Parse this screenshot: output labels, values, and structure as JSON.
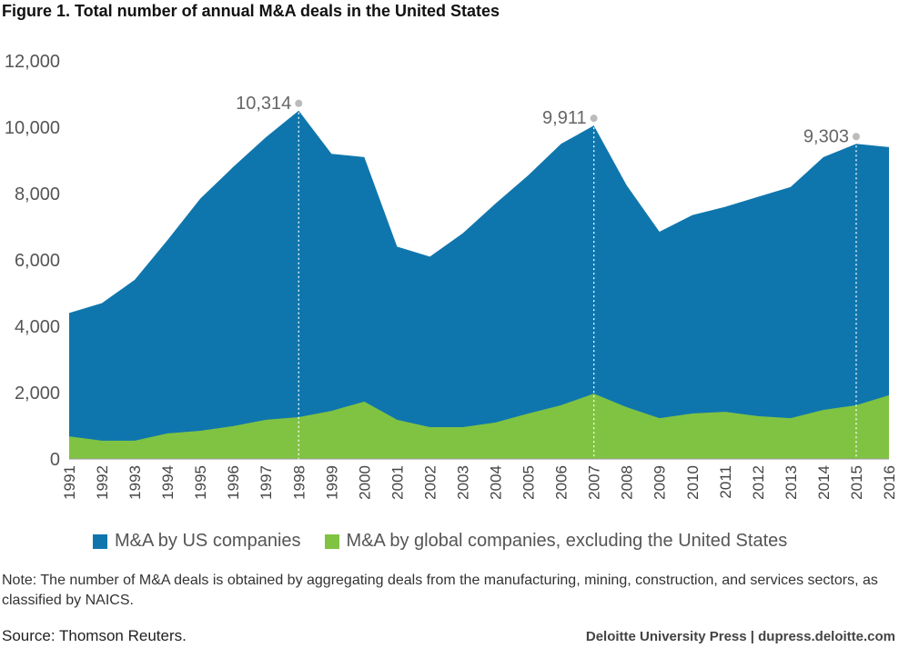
{
  "chart_data": {
    "type": "area",
    "title": "Figure 1. Total number of annual M&A deals in the United States",
    "xlabel": "",
    "ylabel": "",
    "ylim": [
      0,
      12000
    ],
    "yticks": [
      "0",
      "2,000",
      "4,000",
      "6,000",
      "8,000",
      "10,000",
      "12,000"
    ],
    "ytick_values": [
      0,
      2000,
      4000,
      6000,
      8000,
      10000,
      12000
    ],
    "grid": false,
    "legend_position": "bottom",
    "categories": [
      "1991",
      "1992",
      "1993",
      "1994",
      "1995",
      "1996",
      "1997",
      "1998",
      "1999",
      "2000",
      "2001",
      "2002",
      "2003",
      "2004",
      "2005",
      "2006",
      "2007",
      "2008",
      "2009",
      "2010",
      "2011",
      "2012",
      "2013",
      "2014",
      "2015",
      "2016"
    ],
    "series": [
      {
        "name": "M&A by US companies",
        "color": "#0f76ad",
        "values": [
          4400,
          4700,
          5400,
          6600,
          7850,
          8800,
          9700,
          10500,
          9200,
          9100,
          6400,
          6100,
          6800,
          7700,
          8550,
          9500,
          10050,
          8250,
          6850,
          7350,
          7600,
          7900,
          8200,
          9100,
          9500,
          9400
        ]
      },
      {
        "name": "M&A by global companies, excluding the United States",
        "color": "#80c342",
        "values": [
          680,
          550,
          550,
          770,
          850,
          990,
          1180,
          1260,
          1450,
          1730,
          1180,
          960,
          960,
          1100,
          1370,
          1620,
          1970,
          1560,
          1230,
          1370,
          1420,
          1290,
          1230,
          1480,
          1620,
          1920
        ]
      }
    ],
    "annotations": [
      {
        "year": "1998",
        "label": "10,314"
      },
      {
        "year": "2007",
        "label": "9,911"
      },
      {
        "year": "2015",
        "label": "9,303"
      }
    ]
  },
  "note": "Note: The number of M&A deals is obtained by aggregating deals from the manufacturing, mining, construction, and services sectors, as classified by NAICS.",
  "source": "Source: Thomson Reuters.",
  "credit": "Deloitte University Press  |  dupress.deloitte.com"
}
